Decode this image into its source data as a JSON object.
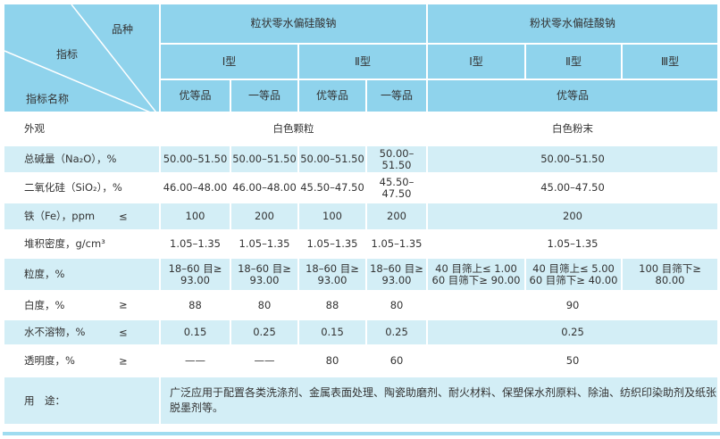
{
  "header": {
    "corner": {
      "variety": "品种",
      "indicator": "指标",
      "indicator_name": "指标名称"
    },
    "groups": [
      "粒状零水偏硅酸钠",
      "粉状零水偏硅酸钠"
    ],
    "types": [
      "Ⅰ型",
      "Ⅱ型",
      "Ⅰ型",
      "Ⅱ型",
      "Ⅲ型"
    ],
    "grades": [
      "优等品",
      "一等品",
      "优等品",
      "一等品",
      "优等品"
    ]
  },
  "rows": [
    {
      "label": "外观",
      "sign": "",
      "cells": [
        {
          "text": "白色颗粒",
          "span": 4
        },
        {
          "text": "白色粉末",
          "span": 3
        }
      ]
    },
    {
      "label": "总碱量（Na₂O），%",
      "sign": "",
      "cells": [
        {
          "text": "50.00–51.50"
        },
        {
          "text": "50.00–51.50"
        },
        {
          "text": "50.00–51.50"
        },
        {
          "text": "50.00–51.50"
        },
        {
          "text": "50.00–51.50",
          "span": 3
        }
      ]
    },
    {
      "label": "二氧化硅（SiO₂），%",
      "sign": "",
      "cells": [
        {
          "text": "46.00–48.00"
        },
        {
          "text": "46.00–48.00"
        },
        {
          "text": "45.50–47.50"
        },
        {
          "text": "45.50–47.50"
        },
        {
          "text": "45.00–47.50",
          "span": 3
        }
      ]
    },
    {
      "label": "铁（Fe），ppm",
      "sign": "≤",
      "cells": [
        {
          "text": "100"
        },
        {
          "text": "200"
        },
        {
          "text": "100"
        },
        {
          "text": "200"
        },
        {
          "text": "200",
          "span": 3
        }
      ]
    },
    {
      "label": "堆积密度，g/cm³",
      "sign": "",
      "cells": [
        {
          "text": "1.05–1.35"
        },
        {
          "text": "1.05–1.35"
        },
        {
          "text": "1.05–1.35"
        },
        {
          "text": "1.05–1.35"
        },
        {
          "text": "1.05–1.35",
          "span": 3
        }
      ]
    },
    {
      "label": "粒度，%",
      "sign": "",
      "cells": [
        {
          "text": "18–60 目≥\n93.00"
        },
        {
          "text": "18–60 目≥\n93.00"
        },
        {
          "text": "18–60 目≥\n93.00"
        },
        {
          "text": "18–60 目≥\n93.00"
        },
        {
          "text": "40 目筛上≤ 1.00\n60 目筛下≥ 90.00"
        },
        {
          "text": "40 目筛上≤ 5.00\n60 目筛下≥ 40.00"
        },
        {
          "text": "100 目筛下≥ 80.00"
        }
      ]
    },
    {
      "label": "白度，%",
      "sign": "≥",
      "cells": [
        {
          "text": "88"
        },
        {
          "text": "80"
        },
        {
          "text": "88"
        },
        {
          "text": "80"
        },
        {
          "text": "90",
          "span": 3
        }
      ]
    },
    {
      "label": "水不溶物，%",
      "sign": "≤",
      "cells": [
        {
          "text": "0.15"
        },
        {
          "text": "0.25"
        },
        {
          "text": "0.15"
        },
        {
          "text": "0.25"
        },
        {
          "text": "0.25",
          "span": 3
        }
      ]
    },
    {
      "label": "透明度，%",
      "sign": "≥",
      "cells": [
        {
          "text": "——"
        },
        {
          "text": "——"
        },
        {
          "text": "80"
        },
        {
          "text": "60"
        },
        {
          "text": "50",
          "span": 3
        }
      ]
    }
  ],
  "usage": {
    "label": "用　途：",
    "text": "广泛应用于配置各类洗涤剂、金属表面处理、陶瓷助磨剂、耐火材料、保塑保水剂原料、除油、纺织印染助剂及纸张脱墨剂等。"
  },
  "colors": {
    "header": "#8fd3ec",
    "band": "#d3eef6"
  }
}
